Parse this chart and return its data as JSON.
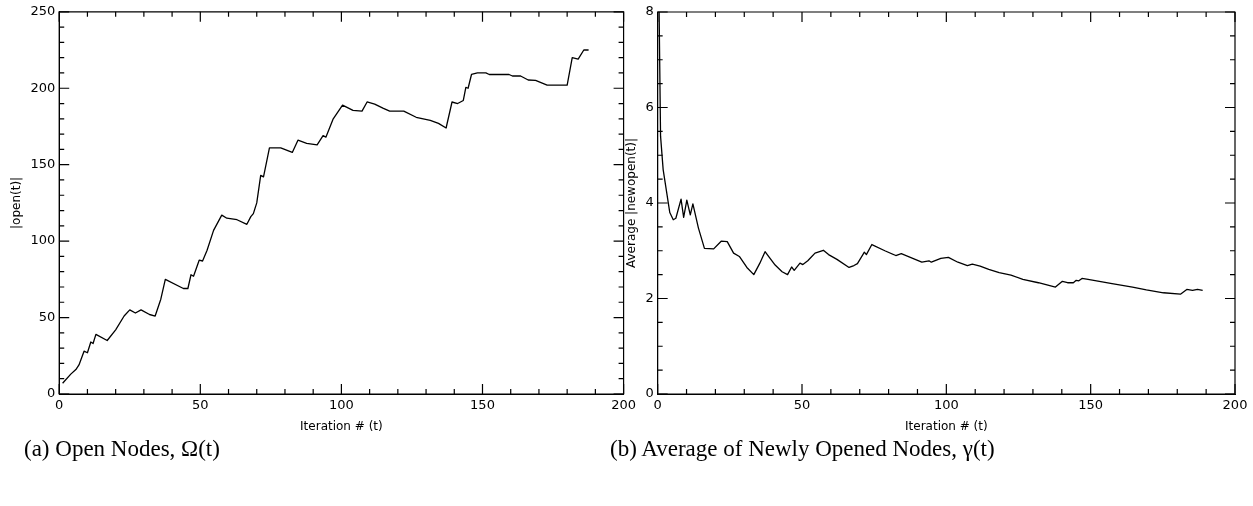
{
  "chart_data": [
    {
      "type": "line",
      "title": "(a) Open Nodes, Ω(t)",
      "xlabel": "Iteration # (t)",
      "ylabel": "|open(t)|",
      "xlim": [
        0,
        200
      ],
      "ylim": [
        0,
        250
      ],
      "xticks": [
        0,
        {
          "value": 10,
          "label": null
        },
        {
          "value": 20,
          "label": null
        },
        {
          "value": 30,
          "label": null
        },
        {
          "value": 40,
          "label": null
        },
        50,
        {
          "value": 60,
          "label": null
        },
        {
          "value": 70,
          "label": null
        },
        {
          "value": 80,
          "label": null
        },
        {
          "value": 90,
          "label": null
        },
        100,
        {
          "value": 110,
          "label": null
        },
        {
          "value": 120,
          "label": null
        },
        {
          "value": 130,
          "label": null
        },
        {
          "value": 140,
          "label": null
        },
        150,
        {
          "value": 160,
          "label": null
        },
        {
          "value": 170,
          "label": null
        },
        {
          "value": 180,
          "label": null
        },
        {
          "value": 190,
          "label": null
        },
        200
      ],
      "yticks": [
        0,
        {
          "value": 10,
          "label": null
        },
        {
          "value": 20,
          "label": null
        },
        {
          "value": 30,
          "label": null
        },
        {
          "value": 40,
          "label": null
        },
        50,
        {
          "value": 60,
          "label": null
        },
        {
          "value": 70,
          "label": null
        },
        {
          "value": 80,
          "label": null
        },
        {
          "value": 90,
          "label": null
        },
        100,
        {
          "value": 110,
          "label": null
        },
        {
          "value": 120,
          "label": null
        },
        {
          "value": 130,
          "label": null
        },
        {
          "value": 140,
          "label": null
        },
        150,
        {
          "value": 160,
          "label": null
        },
        {
          "value": 170,
          "label": null
        },
        {
          "value": 180,
          "label": null
        },
        {
          "value": 190,
          "label": null
        },
        200,
        {
          "value": 210,
          "label": null
        },
        {
          "value": 220,
          "label": null
        },
        {
          "value": 230,
          "label": null
        },
        {
          "value": 240,
          "label": null
        },
        250
      ],
      "marker": "none",
      "series": [
        {
          "color": "#000000",
          "x": [
            1.2,
            4.1,
            5.9,
            7,
            8.8,
            10,
            11.2,
            12,
            13,
            17,
            20,
            23,
            25,
            27,
            29,
            32,
            34,
            36,
            37.6,
            44,
            45.6,
            46.7,
            47.6,
            49.6,
            50.8,
            52.4,
            54.7,
            57.6,
            59.4,
            63,
            66.5,
            67.9,
            68.8,
            70,
            71.4,
            72.4,
            74.5,
            78.5,
            82.6,
            84.6,
            87.7,
            91.4,
            93.5,
            94.5,
            97.1,
            100.4,
            104.1,
            107.3,
            109.1,
            111.8,
            114.7,
            117.1,
            122.1,
            126.5,
            131.5,
            134.4,
            137.1,
            139.2,
            141.2,
            143.2,
            144.1,
            144.9,
            146.1,
            148.2,
            151.2,
            152.4,
            159.4,
            160.6,
            163.5,
            166.2,
            168.8,
            172.9,
            180,
            181.8,
            183.9,
            185.9,
            187.6
          ],
          "values": [
            7,
            13,
            16,
            19,
            28,
            27,
            34,
            33,
            39,
            35,
            42,
            51,
            55,
            53,
            55,
            52,
            51,
            62,
            75,
            69,
            69,
            78,
            77,
            87.5,
            87,
            94,
            107,
            117,
            115,
            114,
            111,
            116,
            118,
            125,
            143,
            142,
            161,
            161,
            158,
            166,
            164,
            163,
            169,
            168,
            180,
            189,
            185.5,
            185,
            191,
            189.6,
            187,
            185,
            185,
            181,
            179,
            177,
            174,
            191,
            190,
            192,
            200.6,
            200,
            209,
            210,
            210,
            209,
            209,
            208,
            208,
            205.4,
            205.2,
            202,
            202,
            220,
            219,
            225,
            225
          ]
        }
      ]
    },
    {
      "type": "line",
      "title": "(b) Average of Newly Opened Nodes, γ(t)",
      "xlabel": "Iteration # (t)",
      "ylabel": "Average |newopen(t)|",
      "xlim": [
        0,
        200
      ],
      "ylim": [
        0,
        8
      ],
      "xticks": [
        0,
        {
          "value": 10,
          "label": null
        },
        {
          "value": 20,
          "label": null
        },
        {
          "value": 30,
          "label": null
        },
        {
          "value": 40,
          "label": null
        },
        50,
        {
          "value": 60,
          "label": null
        },
        {
          "value": 70,
          "label": null
        },
        {
          "value": 80,
          "label": null
        },
        {
          "value": 90,
          "label": null
        },
        100,
        {
          "value": 110,
          "label": null
        },
        {
          "value": 120,
          "label": null
        },
        {
          "value": 130,
          "label": null
        },
        {
          "value": 140,
          "label": null
        },
        150,
        {
          "value": 160,
          "label": null
        },
        {
          "value": 170,
          "label": null
        },
        {
          "value": 180,
          "label": null
        },
        {
          "value": 190,
          "label": null
        },
        200
      ],
      "yticks": [
        0,
        {
          "value": 0.5,
          "label": null
        },
        {
          "value": 1,
          "label": null
        },
        {
          "value": 1.5,
          "label": null
        },
        2,
        {
          "value": 2.5,
          "label": null
        },
        {
          "value": 3,
          "label": null
        },
        {
          "value": 3.5,
          "label": null
        },
        4,
        {
          "value": 4.5,
          "label": null
        },
        {
          "value": 5,
          "label": null
        },
        {
          "value": 5.5,
          "label": null
        },
        6,
        {
          "value": 6.5,
          "label": null
        },
        {
          "value": 7,
          "label": null
        },
        {
          "value": 7.5,
          "label": null
        },
        8
      ],
      "marker": "none",
      "series": [
        {
          "color": "#000000",
          "x": [
            0.5,
            1.0,
            1.9,
            4.2,
            5.4,
            6.3,
            8.1,
            9,
            10.1,
            11.3,
            12.2,
            14.1,
            16.2,
            19.4,
            22,
            24.1,
            26.3,
            28.3,
            30.9,
            33.3,
            35.4,
            37.2,
            40.7,
            43.1,
            45,
            46.4,
            47.3,
            49.3,
            50.3,
            52,
            54.5,
            57.4,
            59.2,
            62.1,
            66.3,
            68,
            69.2,
            71.6,
            72.3,
            74.2,
            78.7,
            82.5,
            84.4,
            91.5,
            94,
            94.8,
            98.1,
            100.7,
            104,
            107.3,
            109,
            111.7,
            114.7,
            118.3,
            122.4,
            126.5,
            131.9,
            137.8,
            140.2,
            142,
            144,
            145,
            145.9,
            147,
            149.1,
            157.4,
            164.5,
            169.3,
            175.2,
            181.1,
            183.3,
            185.3,
            187,
            188.8
          ],
          "values": [
            8.0,
            5.4,
            4.7,
            3.8,
            3.65,
            3.68,
            4.08,
            3.7,
            4.06,
            3.75,
            3.98,
            3.48,
            3.05,
            3.04,
            3.2,
            3.19,
            2.95,
            2.88,
            2.65,
            2.5,
            2.74,
            2.98,
            2.7,
            2.56,
            2.5,
            2.66,
            2.59,
            2.74,
            2.71,
            2.79,
            2.95,
            3.01,
            2.92,
            2.82,
            2.65,
            2.69,
            2.73,
            2.97,
            2.92,
            3.13,
            3.0,
            2.9,
            2.94,
            2.76,
            2.79,
            2.76,
            2.84,
            2.86,
            2.76,
            2.69,
            2.72,
            2.68,
            2.61,
            2.54,
            2.49,
            2.4,
            2.33,
            2.24,
            2.36,
            2.33,
            2.33,
            2.38,
            2.37,
            2.42,
            2.4,
            2.31,
            2.24,
            2.18,
            2.12,
            2.09,
            2.19,
            2.17,
            2.19,
            2.17
          ]
        }
      ]
    }
  ]
}
